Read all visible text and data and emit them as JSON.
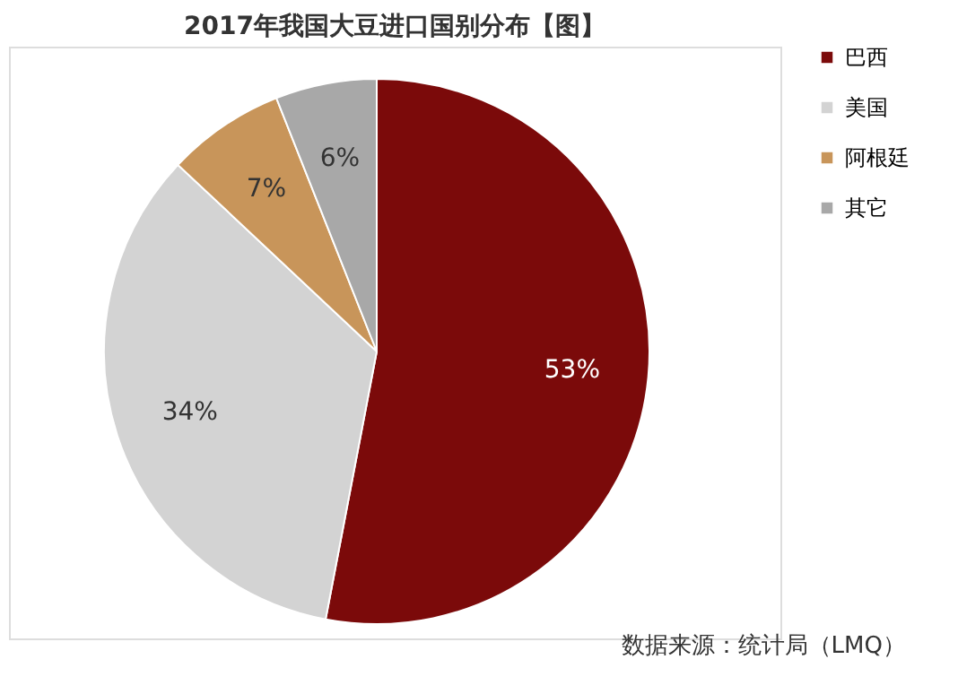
{
  "chart_data": {
    "type": "pie",
    "title": "2017年我国大豆进口国别分布【图】",
    "categories": [
      "巴西",
      "美国",
      "阿根廷",
      "其它"
    ],
    "values": [
      53,
      34,
      7,
      6
    ],
    "colors": [
      "#7b0a0a",
      "#d3d3d3",
      "#c8955a",
      "#a8a8a8"
    ],
    "value_labels": [
      "53%",
      "34%",
      "7%",
      "6%"
    ],
    "legend": "right",
    "annotations": [
      "数据来源：统计局（LMQ）"
    ]
  }
}
